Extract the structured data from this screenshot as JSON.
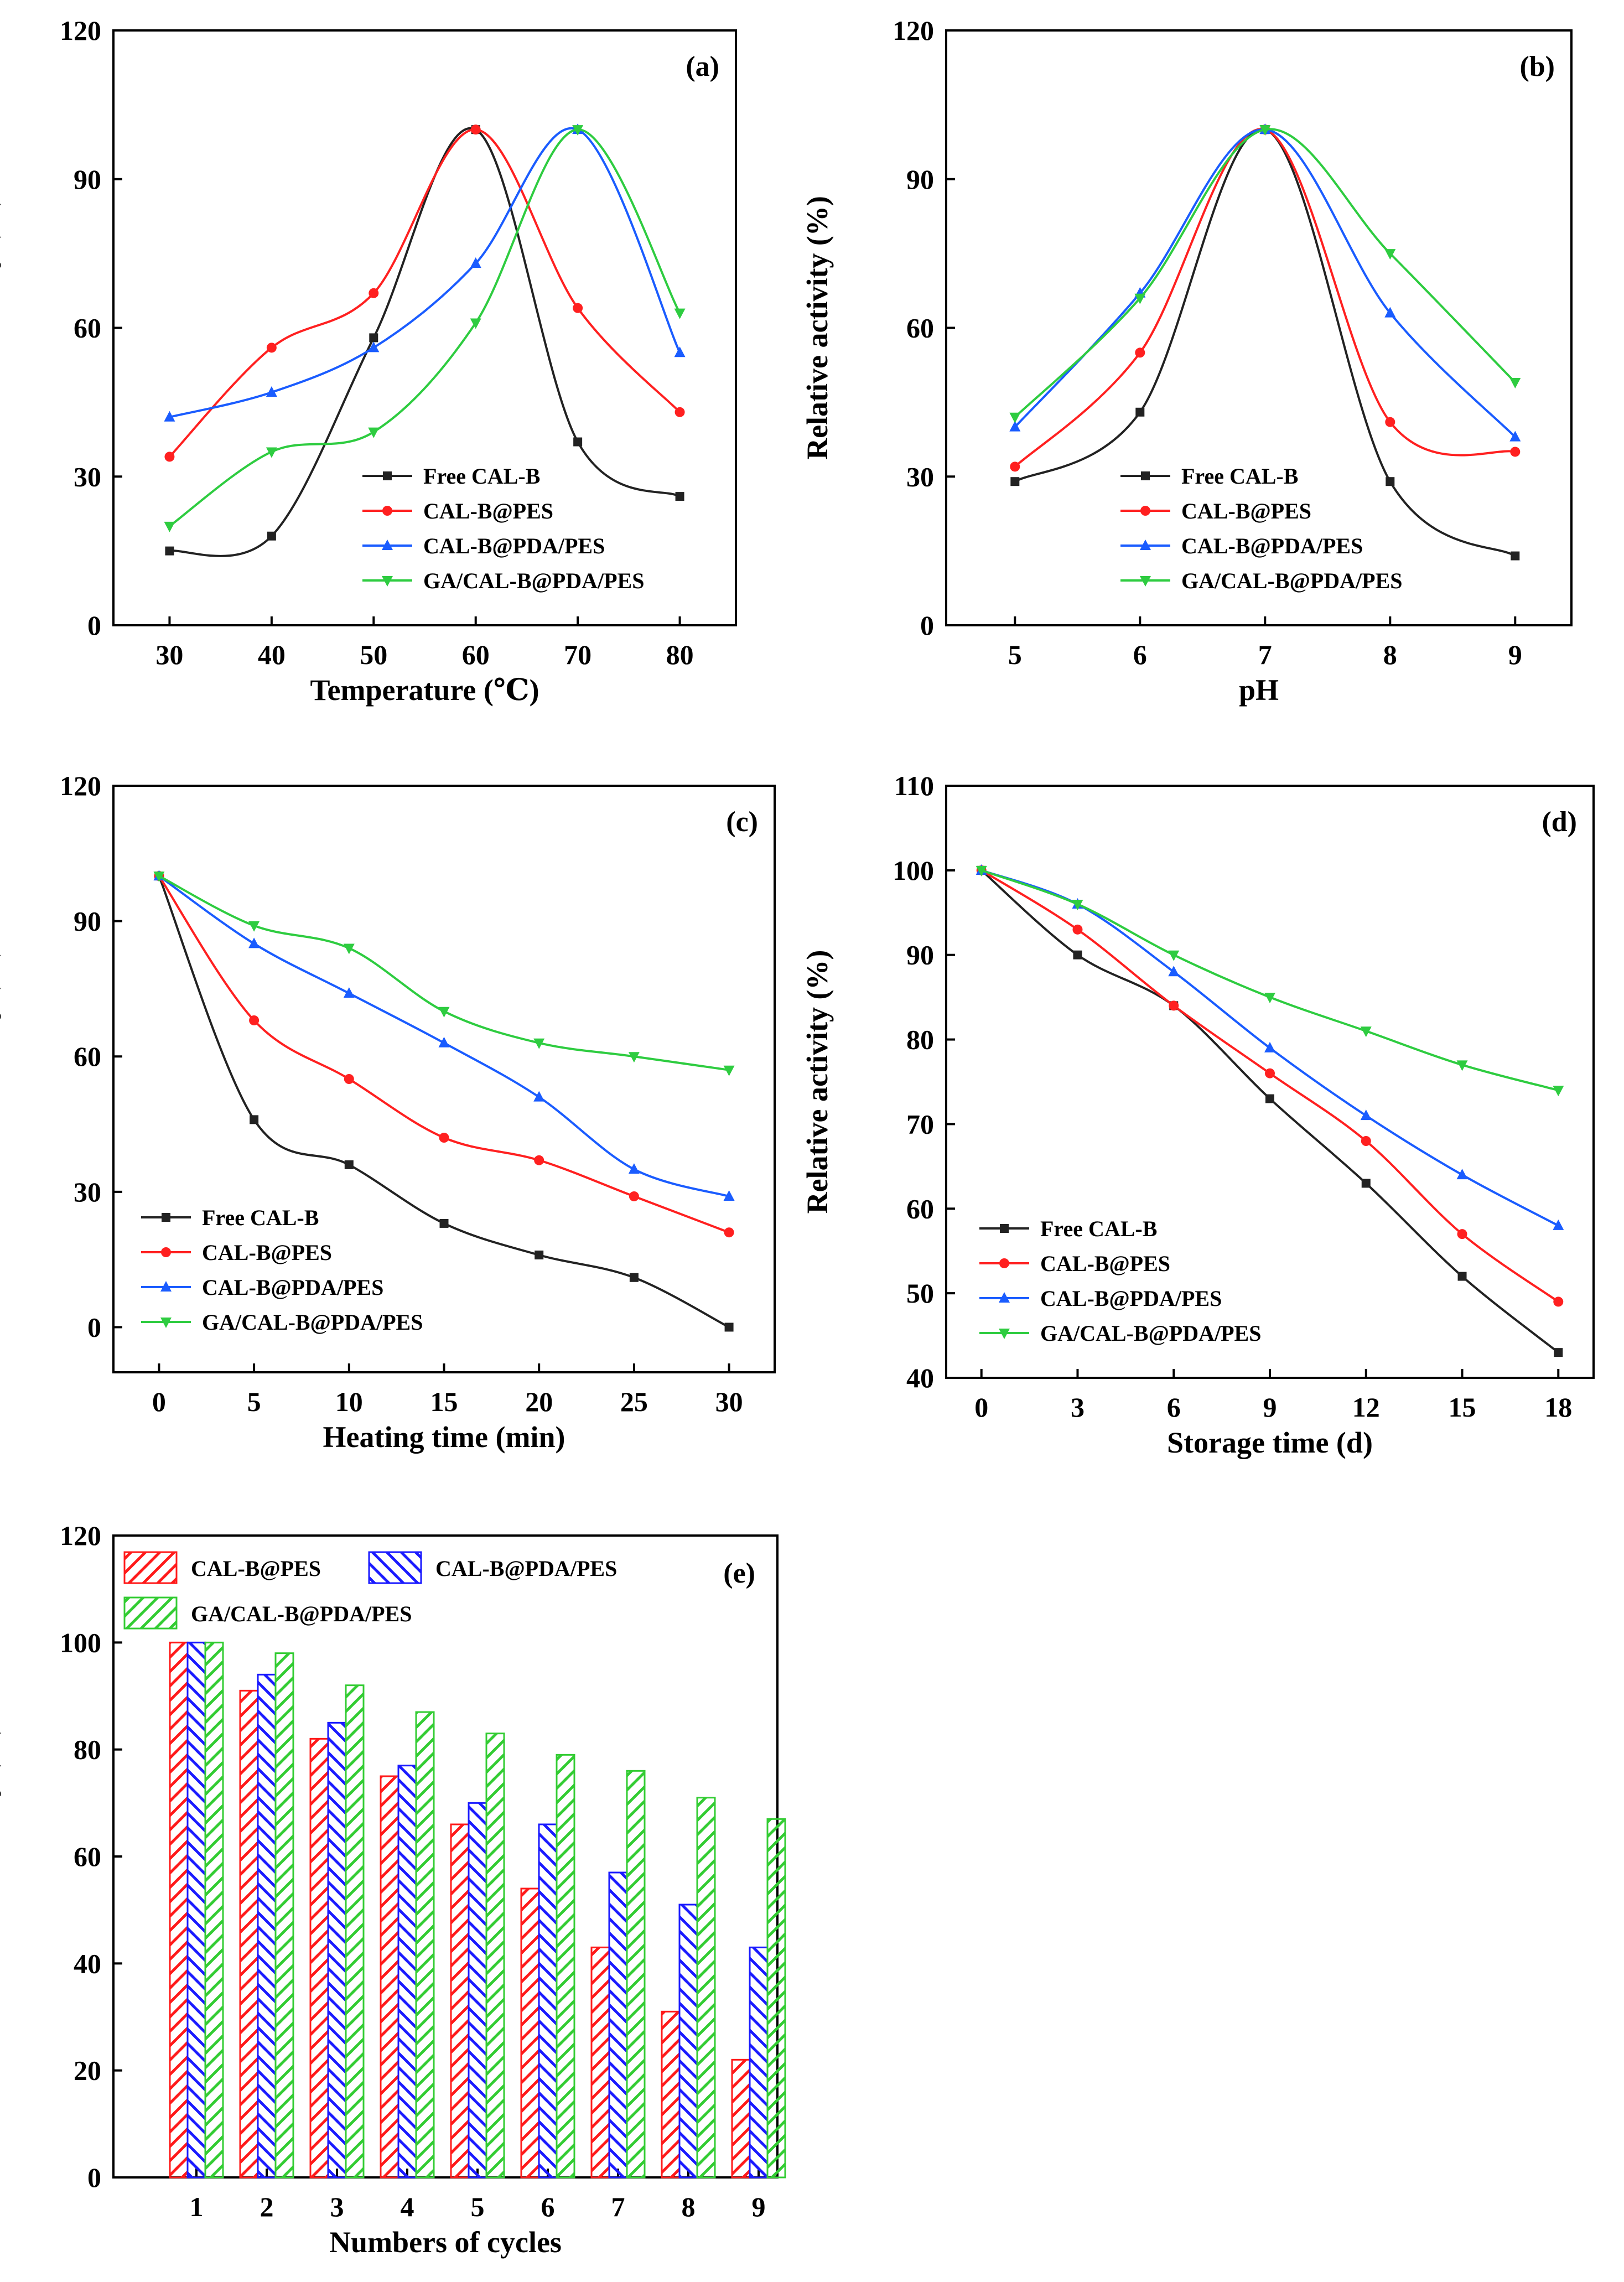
{
  "chart_data": [
    {
      "panel": "(a)",
      "type": "line",
      "xlabel": "Temperature (℃)",
      "ylabel": "Relative activity (%)",
      "x": [
        30,
        40,
        50,
        60,
        70,
        80
      ],
      "xticks": [
        "30",
        "40",
        "50",
        "60",
        "70",
        "80"
      ],
      "xlim": [
        24.5,
        85.5
      ],
      "ylim": [
        0,
        120
      ],
      "yticks": [
        "0",
        "30",
        "60",
        "90",
        "120"
      ],
      "legend": "lower-center",
      "series": [
        {
          "name": "Free CAL-B",
          "color": "#222222",
          "marker": "square",
          "values": [
            15,
            18,
            58,
            100,
            37,
            26
          ]
        },
        {
          "name": "CAL-B@PES",
          "color": "#ff2020",
          "marker": "circle",
          "values": [
            34,
            56,
            67,
            100,
            64,
            43
          ]
        },
        {
          "name": "CAL-B@PDA/PES",
          "color": "#1a5cff",
          "marker": "triangle-up",
          "values": [
            42,
            47,
            56,
            73,
            100,
            55
          ]
        },
        {
          "name": "GA/CAL-B@PDA/PES",
          "color": "#2ecc40",
          "marker": "triangle-down",
          "values": [
            20,
            35,
            39,
            61,
            100,
            63
          ]
        }
      ]
    },
    {
      "panel": "(b)",
      "type": "line",
      "xlabel": "pH",
      "ylabel": "Relative activity (%)",
      "x": [
        5,
        6,
        7,
        8,
        9
      ],
      "xticks": [
        "5",
        "6",
        "7",
        "8",
        "9"
      ],
      "xlim": [
        4.45,
        9.45
      ],
      "ylim": [
        0,
        120
      ],
      "yticks": [
        "0",
        "30",
        "60",
        "90",
        "120"
      ],
      "legend": "lower-center",
      "series": [
        {
          "name": "Free CAL-B",
          "color": "#222222",
          "marker": "square",
          "values": [
            29,
            43,
            100,
            29,
            14
          ]
        },
        {
          "name": "CAL-B@PES",
          "color": "#ff2020",
          "marker": "circle",
          "values": [
            32,
            55,
            100,
            41,
            35
          ]
        },
        {
          "name": "CAL-B@PDA/PES",
          "color": "#1a5cff",
          "marker": "triangle-up",
          "values": [
            40,
            67,
            100,
            63,
            38
          ]
        },
        {
          "name": "GA/CAL-B@PDA/PES",
          "color": "#2ecc40",
          "marker": "triangle-down",
          "values": [
            42,
            66,
            100,
            75,
            49
          ]
        }
      ]
    },
    {
      "panel": "(c)",
      "type": "line",
      "xlabel": "Heating time (min)",
      "ylabel": "Relative activity (%)",
      "x": [
        0,
        5,
        10,
        15,
        20,
        25,
        30
      ],
      "xticks": [
        "0",
        "5",
        "10",
        "15",
        "20",
        "25",
        "30"
      ],
      "xlim": [
        -2.4,
        32.4
      ],
      "ylim": [
        -10,
        120
      ],
      "yticks": [
        "0",
        "30",
        "60",
        "90",
        "120"
      ],
      "legend": "lower-left",
      "series": [
        {
          "name": "Free CAL-B",
          "color": "#222222",
          "marker": "square",
          "values": [
            100,
            46,
            36,
            23,
            16,
            11,
            0
          ]
        },
        {
          "name": "CAL-B@PES",
          "color": "#ff2020",
          "marker": "circle",
          "values": [
            100,
            68,
            55,
            42,
            37,
            29,
            21
          ]
        },
        {
          "name": "CAL-B@PDA/PES",
          "color": "#1a5cff",
          "marker": "triangle-up",
          "values": [
            100,
            85,
            74,
            63,
            51,
            35,
            29
          ]
        },
        {
          "name": "GA/CAL-B@PDA/PES",
          "color": "#2ecc40",
          "marker": "triangle-down",
          "values": [
            100,
            89,
            84,
            70,
            63,
            60,
            57
          ]
        }
      ]
    },
    {
      "panel": "(d)",
      "type": "line",
      "xlabel": "Storage time (d)",
      "ylabel": "Relative activity (%)",
      "x": [
        0,
        3,
        6,
        9,
        12,
        15,
        18
      ],
      "xticks": [
        "0",
        "3",
        "6",
        "9",
        "12",
        "15",
        "18"
      ],
      "xlim": [
        -1.1,
        19.1
      ],
      "ylim": [
        40,
        110
      ],
      "yticks": [
        "40",
        "50",
        "60",
        "70",
        "80",
        "90",
        "100",
        "110"
      ],
      "legend": "lower-left",
      "series": [
        {
          "name": "Free CAL-B",
          "color": "#222222",
          "marker": "square",
          "values": [
            100,
            90,
            84,
            73,
            63,
            52,
            43
          ]
        },
        {
          "name": "CAL-B@PES",
          "color": "#ff2020",
          "marker": "circle",
          "values": [
            100,
            93,
            84,
            76,
            68,
            57,
            49
          ]
        },
        {
          "name": "CAL-B@PDA/PES",
          "color": "#1a5cff",
          "marker": "triangle-up",
          "values": [
            100,
            96,
            88,
            79,
            71,
            64,
            58
          ]
        },
        {
          "name": "GA/CAL-B@PDA/PES",
          "color": "#2ecc40",
          "marker": "triangle-down",
          "values": [
            100,
            96,
            90,
            85,
            81,
            77,
            74
          ]
        }
      ]
    },
    {
      "panel": "(e)",
      "type": "bar",
      "xlabel": "Numbers of cycles",
      "ylabel": "Relative activity (%)",
      "categories": [
        "1",
        "2",
        "3",
        "4",
        "5",
        "6",
        "7",
        "8",
        "9"
      ],
      "ylim": [
        0,
        120
      ],
      "yticks": [
        "0",
        "20",
        "40",
        "60",
        "80",
        "100",
        "120"
      ],
      "legend": "top-left",
      "series": [
        {
          "name": "CAL-B@PES",
          "color": "#ff1a1a",
          "hatch": "diagonal",
          "values": [
            100,
            91,
            82,
            75,
            66,
            54,
            43,
            31,
            22
          ]
        },
        {
          "name": "CAL-B@PDA/PES",
          "color": "#1a1aff",
          "hatch": "back-diagonal",
          "values": [
            100,
            94,
            85,
            77,
            70,
            66,
            57,
            51,
            43
          ]
        },
        {
          "name": "GA/CAL-B@PDA/PES",
          "color": "#33cc33",
          "hatch": "diagonal",
          "values": [
            100,
            98,
            92,
            87,
            83,
            79,
            76,
            71,
            67
          ]
        }
      ]
    }
  ]
}
